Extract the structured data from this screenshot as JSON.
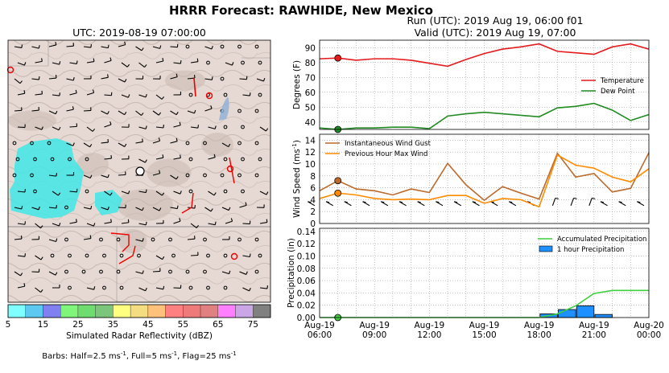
{
  "figure": {
    "title": "HRRR Forecast: RAWHIDE, New Mexico",
    "run_line": "Run (UTC): 2019 Aug 19, 06:00 f01",
    "valid_line": "Valid (UTC): 2019 Aug 19, 07:00"
  },
  "map": {
    "title": "UTC: 2019-08-19 07:00:00",
    "colorbar_label": "Simulated Radar Reflectivity (dBZ)",
    "colorbar_ticks": [
      "5",
      "15",
      "25",
      "35",
      "45",
      "55",
      "65",
      "75"
    ],
    "colorbar_colors": [
      "#7fffff",
      "#5ec9f0",
      "#8080f0",
      "#7ff57a",
      "#6edc6e",
      "#7cc67c",
      "#ffff80",
      "#f5dc80",
      "#ffc27a",
      "#ff8080",
      "#ee7a7a",
      "#e08080",
      "#ff7fff",
      "#caa6e6",
      "#808080"
    ],
    "barbs_note_prefix": "Barbs: Half=2.5 ms",
    "barbs_note_mid1": ", Full=5 ms",
    "barbs_note_mid2": ", Flag=25 ms",
    "barbs_note_sup": "-1"
  },
  "chart_data": [
    {
      "type": "line",
      "panel": "temperature",
      "ylabel": "Degrees (F)",
      "ylim": [
        35,
        95
      ],
      "yticks": [
        40,
        50,
        60,
        70,
        80,
        90
      ],
      "x_hours": [
        6,
        7,
        8,
        9,
        10,
        11,
        12,
        13,
        14,
        15,
        16,
        17,
        18,
        19,
        20,
        21,
        22,
        23,
        24
      ],
      "series": [
        {
          "name": "Temperature",
          "color": "#e41a1c",
          "values": [
            82.5,
            83,
            81.5,
            82.5,
            82.5,
            81.5,
            79.5,
            77.5,
            82,
            86,
            89,
            90.5,
            92.5,
            87.5,
            86.5,
            85.5,
            90.5,
            92.5,
            89
          ]
        },
        {
          "name": "Dew Point",
          "color": "#228b22",
          "values": [
            36,
            35,
            36,
            36,
            36.5,
            36.5,
            35.5,
            44,
            45.5,
            46.5,
            45.5,
            44.5,
            43.5,
            49.5,
            50.5,
            52.5,
            48,
            41,
            45
          ]
        }
      ],
      "marker_hour": 7,
      "legend": "center-right"
    },
    {
      "type": "line",
      "panel": "wind",
      "ylabel": "Wind Speed (ms",
      "ylabel_sup": "-1",
      "ylabel_close": ")",
      "ylim": [
        0,
        15
      ],
      "yticks": [
        0,
        2,
        4,
        6,
        8,
        10,
        12,
        14
      ],
      "x_hours": [
        6,
        7,
        8,
        9,
        10,
        11,
        12,
        13,
        14,
        15,
        16,
        17,
        18,
        19,
        20,
        21,
        22,
        23,
        24
      ],
      "series": [
        {
          "name": "Instantaneous Wind Gust",
          "color": "#bc6a2c",
          "values": [
            5.5,
            7.2,
            5.8,
            5.5,
            4.8,
            5.8,
            5.2,
            10.1,
            6.5,
            3.9,
            6.2,
            5.1,
            4.1,
            11.8,
            7.8,
            8.4,
            5.3,
            5.9,
            11.9
          ]
        },
        {
          "name": "Previous Hour Max Wind",
          "color": "#ff8c00",
          "values": [
            4.2,
            5.1,
            4.8,
            4.2,
            4.0,
            4.1,
            4.0,
            4.7,
            4.7,
            3.4,
            4.2,
            4.0,
            2.8,
            11.5,
            9.8,
            9.3,
            7.8,
            7.0,
            9.2
          ]
        }
      ],
      "marker_hour": 7,
      "legend": "upper-left"
    },
    {
      "type": "bar",
      "panel": "precipitation",
      "ylabel": "Precipitation (in)",
      "ylim": [
        0,
        0.145
      ],
      "yticks": [
        "0.00",
        "0.02",
        "0.04",
        "0.06",
        "0.08",
        "0.10",
        "0.12",
        "0.14"
      ],
      "x_hours": [
        6,
        7,
        8,
        9,
        10,
        11,
        12,
        13,
        14,
        15,
        16,
        17,
        18,
        19,
        20,
        21,
        22,
        23,
        24
      ],
      "series": [
        {
          "name": "Accumulated Precipitation",
          "color": "#3fcf3f",
          "values": [
            0,
            0,
            0,
            0,
            0,
            0,
            0,
            0,
            0,
            0,
            0,
            0,
            0,
            0.006,
            0.019,
            0.039,
            0.044,
            0.044,
            0.044
          ]
        },
        {
          "name": "1 hour Precipitation",
          "color": "#1e90ff",
          "values": [
            0,
            0,
            0,
            0,
            0,
            0,
            0,
            0,
            0,
            0,
            0,
            0,
            0,
            0.006,
            0.013,
            0.019,
            0.005,
            0,
            0
          ]
        }
      ],
      "marker_hour": 7,
      "legend": "upper-right"
    }
  ],
  "x_axis": {
    "labels": [
      {
        "hour": 6,
        "line1": "Aug-19",
        "line2": "06:00"
      },
      {
        "hour": 9,
        "line1": "Aug-19",
        "line2": "09:00"
      },
      {
        "hour": 12,
        "line1": "Aug-19",
        "line2": "12:00"
      },
      {
        "hour": 15,
        "line1": "Aug-19",
        "line2": "15:00"
      },
      {
        "hour": 18,
        "line1": "Aug-19",
        "line2": "18:00"
      },
      {
        "hour": 21,
        "line1": "Aug-19",
        "line2": "21:00"
      },
      {
        "hour": 24,
        "line1": "Aug-20",
        "line2": "00:00"
      }
    ]
  }
}
